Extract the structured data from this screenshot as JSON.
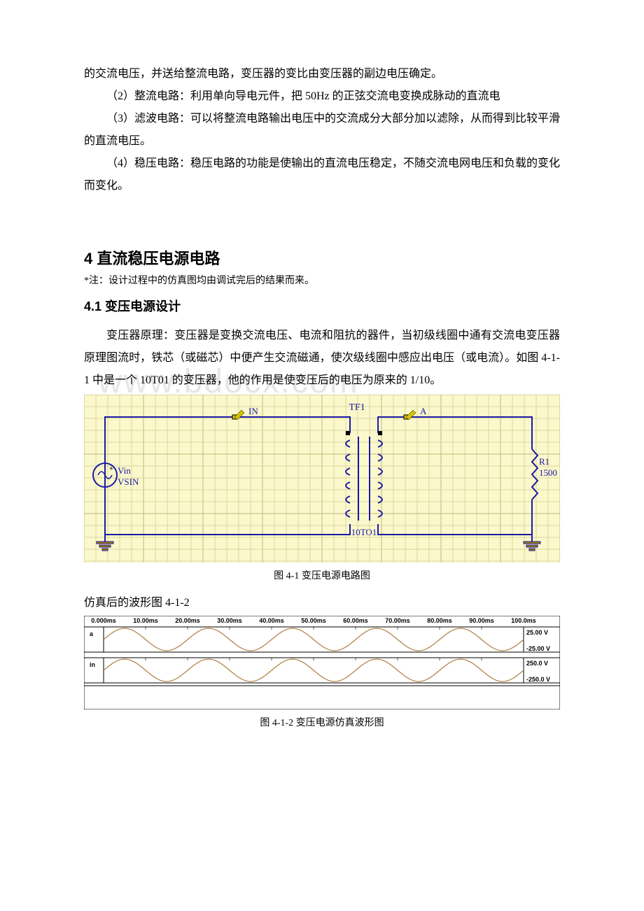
{
  "paragraphs": {
    "p0": "的交流电压，并送给整流电路，变压器的变比由变压器的副边电压确定。",
    "p1": "（2）整流电路：利用单向导电元件，把 50Hz 的正弦交流电变换成脉动的直流电",
    "p2": "（3）滤波电路：可以将整流电路输出电压中的交流成分大部分加以滤除，从而得到比较平滑的直流电压。",
    "p3": "（4）稳压电路：稳压电路的功能是使输出的直流电压稳定，不随交流电网电压和负载的变化而变化。",
    "p4": "变压器原理：变压器是变换交流电压、电流和阻抗的器件，当初级线圈中通有交流电变压器原理图流时，铁芯（或磁芯）中便产生交流磁通，使次级线圈中感应出电压（或电流）。如图 4-1-1 中是一个 10T01 的变压器，他的作用是使变压后的电压为原来的 1/10。",
    "p5": "仿真后的波形图 4-1-2"
  },
  "headings": {
    "h1": "4  直流稳压电源电路",
    "h2": "4.1 变压电源设计"
  },
  "note": "*注：设计过程中的仿真图均由调试完后的结果而来。",
  "captions": {
    "c1": "图 4-1 变压电源电路图",
    "c2": "图 4-1-2 变压电源仿真波形图"
  },
  "watermark": "www.bdocx.com",
  "circuit": {
    "bg": "#fbf8cc",
    "grid_light": "#dcd6a0",
    "grid_dark": "#bfb77a",
    "wire": "#1a1aa6",
    "text": "#1a1aa6",
    "black": "#000000",
    "red": "#cc0000",
    "ground_fill": "#a67c00",
    "labels": {
      "tf1": "TF1",
      "in": "IN",
      "a": "A",
      "vin": "Vin",
      "vsin": "VSIN",
      "ratio": "10TO1",
      "r1": "R1",
      "r1v": "1500"
    }
  },
  "wave": {
    "grid": "#dcdcdc",
    "bg": "#ffffff",
    "axis_text": "#000000",
    "line": "#b08040",
    "xlabels": [
      "0.000ms",
      "10.00ms",
      "20.00ms",
      "30.00ms",
      "40.00ms",
      "50.00ms",
      "60.00ms",
      "70.00ms",
      "80.00ms",
      "90.00ms",
      "100.0ms"
    ],
    "row1": {
      "label": "a",
      "ymax": "25.00 V",
      "ymin": "-25.00 V"
    },
    "row2": {
      "label": "in",
      "ymax": "250.0 V",
      "ymin": "-250.0 V"
    },
    "cycles": 5,
    "font_size_axis": 9
  }
}
